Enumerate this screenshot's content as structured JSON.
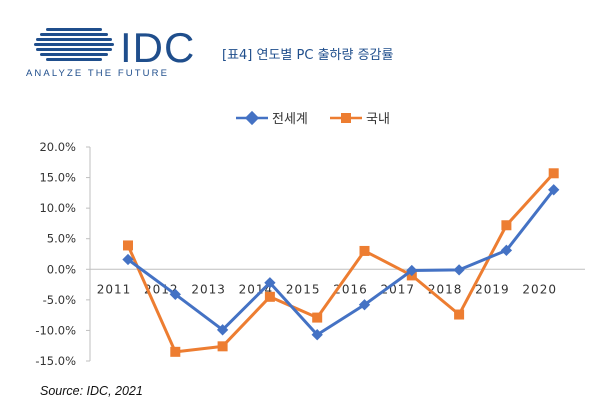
{
  "header": {
    "logo_text": "IDC",
    "logo_tagline": "ANALYZE THE FUTURE",
    "title": "[표4] 연도별 PC 출하량 증감률"
  },
  "source": "Source: IDC, 2021",
  "colors": {
    "brand": "#1f4e8c",
    "series_world": "#4472c4",
    "series_domestic": "#ed7d31",
    "axis": "#bfbfbf"
  },
  "chart_data": {
    "type": "line",
    "title": "",
    "xlabel": "",
    "ylabel": "",
    "categories": [
      "2011",
      "2012",
      "2013",
      "2014",
      "2015",
      "2016",
      "2017",
      "2018",
      "2019",
      "2020"
    ],
    "ylim": [
      -15,
      20
    ],
    "yticks": [
      "20.0%",
      "15.0%",
      "10.0%",
      "5.0%",
      "0.0%",
      "-5.0%",
      "-10.0%",
      "-15.0%"
    ],
    "legend_position": "top-center",
    "series": [
      {
        "name": "전세계",
        "marker": "diamond",
        "values": [
          1.6,
          -4.1,
          -9.9,
          -2.2,
          -10.7,
          -5.8,
          -0.2,
          -0.1,
          3.1,
          13.0
        ]
      },
      {
        "name": "국내",
        "marker": "square",
        "values": [
          3.9,
          -13.5,
          -12.6,
          -4.5,
          -7.9,
          3.0,
          -1.0,
          -7.4,
          7.2,
          15.7
        ]
      }
    ]
  }
}
